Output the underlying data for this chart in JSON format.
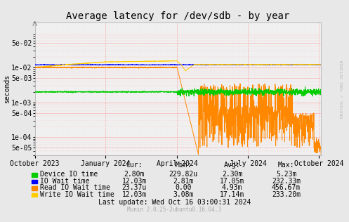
{
  "title": "Average latency for /dev/sdb - by year",
  "ylabel": "seconds",
  "background_color": "#e8e8e8",
  "plot_bg_color": "#f0f0f0",
  "grid_major_color": "#ff9999",
  "grid_minor_color": "#ffcccc",
  "title_fontsize": 10,
  "axis_fontsize": 7,
  "legend_fontsize": 7,
  "ylim_min": 3e-05,
  "ylim_max": 0.2,
  "watermark": "RRDTOOL / TOBI OETIKER",
  "munin_text": "Munin 2.0.25-2ubuntu0.16.04.3",
  "last_update": "Last update: Wed Oct 16 03:00:31 2024",
  "legend_items": [
    {
      "label": "Device IO time",
      "color": "#00cc00"
    },
    {
      "label": "IO Wait time",
      "color": "#0000ff"
    },
    {
      "label": "Read IO Wait time",
      "color": "#ff8800"
    },
    {
      "label": "Write IO Wait time",
      "color": "#ffcc00"
    }
  ],
  "legend_stats": {
    "headers": [
      "Cur:",
      "Min:",
      "Avg:",
      "Max:"
    ],
    "rows": [
      [
        "2.80m",
        "229.82u",
        "2.30m",
        "5.23m"
      ],
      [
        "12.03m",
        "2.81m",
        "17.05m",
        "232.33m"
      ],
      [
        "23.37u",
        "0.00",
        "4.93m",
        "456.67m"
      ],
      [
        "12.03m",
        "3.08m",
        "17.14m",
        "233.20m"
      ]
    ]
  },
  "x_tick_labels": [
    "October 2023",
    "January 2024",
    "April 2024",
    "July 2024",
    "October 2024"
  ],
  "x_tick_positions": [
    0.0,
    0.247,
    0.497,
    0.745,
    0.993
  ],
  "vline_positions": [
    0.247,
    0.497,
    0.745,
    0.993
  ],
  "ytick_vals": [
    5e-05,
    0.0001,
    0.0005,
    0.001,
    0.005,
    0.01,
    0.05
  ],
  "ytick_labels": [
    "5e-05",
    "1e-04",
    "5e-04",
    "1e-03",
    "5e-03",
    "1e-02",
    "5e-02"
  ]
}
